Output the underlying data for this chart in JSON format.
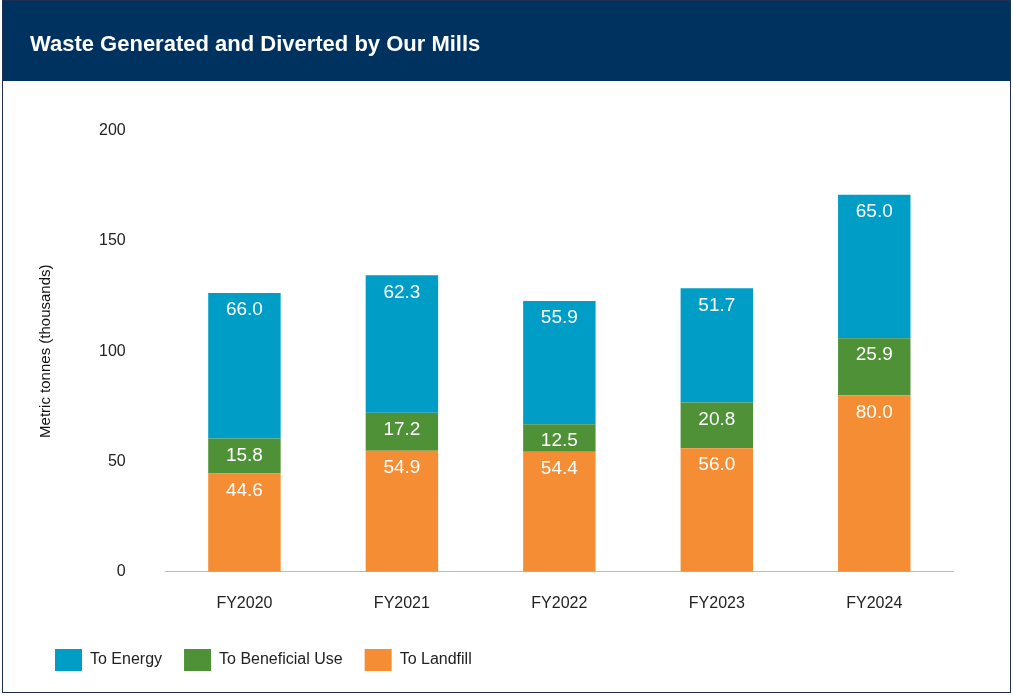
{
  "chart_data": {
    "type": "bar",
    "title": "Waste Generated and Diverted by Our Mills",
    "ylabel": "Metric tonnes (thousands)",
    "categories": [
      "FY2020",
      "FY2021",
      "FY2022",
      "FY2023",
      "FY2024"
    ],
    "series": [
      {
        "name": "To Landfill",
        "color": "#f58d35",
        "values": [
          44.6,
          54.9,
          54.4,
          56.0,
          80.0
        ],
        "value_labels": [
          "44.6",
          "54.9",
          "54.4",
          "56.0",
          "80.0"
        ]
      },
      {
        "name": "To Beneficial Use",
        "color": "#4f9136",
        "values": [
          15.8,
          17.2,
          12.5,
          20.8,
          25.9
        ],
        "value_labels": [
          "15.8",
          "17.2",
          "12.5",
          "20.8",
          "25.9"
        ]
      },
      {
        "name": "To Energy",
        "color": "#009ec6",
        "values": [
          66.0,
          62.3,
          55.9,
          51.7,
          65.0
        ],
        "value_labels": [
          "66.0",
          "62.3",
          "55.9",
          "51.7",
          "65.0"
        ]
      }
    ],
    "stacked": true,
    "ylim": [
      0,
      200
    ],
    "yticks": [
      0,
      50,
      100,
      150,
      200
    ],
    "grid": false,
    "legend": "bottom left"
  }
}
